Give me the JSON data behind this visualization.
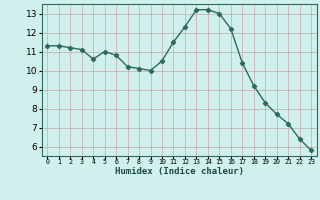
{
  "x": [
    0,
    1,
    2,
    3,
    4,
    5,
    6,
    7,
    8,
    9,
    10,
    11,
    12,
    13,
    14,
    15,
    16,
    17,
    18,
    19,
    20,
    21,
    22,
    23
  ],
  "y": [
    11.3,
    11.3,
    11.2,
    11.1,
    10.6,
    11.0,
    10.8,
    10.2,
    10.1,
    10.0,
    10.5,
    11.5,
    12.3,
    13.2,
    13.2,
    13.0,
    12.2,
    10.4,
    9.2,
    8.3,
    7.7,
    7.2,
    6.4,
    5.8
  ],
  "xlabel": "Humidex (Indice chaleur)",
  "xlim": [
    -0.5,
    23.5
  ],
  "ylim": [
    5.5,
    13.5
  ],
  "yticks": [
    6,
    7,
    8,
    9,
    10,
    11,
    12,
    13
  ],
  "xticks": [
    0,
    1,
    2,
    3,
    4,
    5,
    6,
    7,
    8,
    9,
    10,
    11,
    12,
    13,
    14,
    15,
    16,
    17,
    18,
    19,
    20,
    21,
    22,
    23
  ],
  "xtick_labels": [
    "0",
    "1",
    "2",
    "3",
    "4",
    "5",
    "6",
    "7",
    "8",
    "9",
    "10",
    "11",
    "12",
    "13",
    "14",
    "15",
    "16",
    "17",
    "18",
    "19",
    "20",
    "21",
    "22",
    "23"
  ],
  "line_color": "#2e6b5e",
  "marker": "D",
  "marker_size": 2.2,
  "bg_color": "#cff0ec",
  "grid_color": "#c8a8a8",
  "axes_bg": "#cff0ec"
}
